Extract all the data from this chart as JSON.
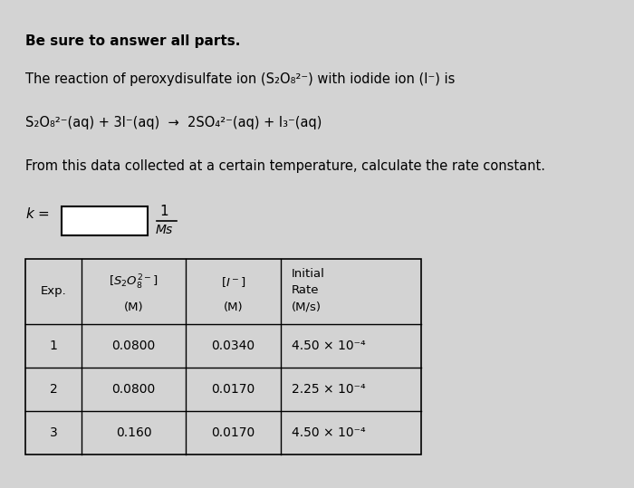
{
  "bg_color": "#d3d3d3",
  "text_color": "#000000",
  "title_bold": "Be sure to answer all parts.",
  "line1": "The reaction of peroxydisulfate ion (S₂O₈²⁻) with iodide ion (I⁻) is",
  "equation": "S₂O₈²⁻(aq) + 3I⁻(aq)  →  2SO₄²⁻(aq) + I₃⁻(aq)",
  "line3": "From this data collected at a certain temperature, calculate the rate constant.",
  "fs_title": 11,
  "fs_body": 10.5,
  "fs_table_header": 9.5,
  "fs_table_body": 10,
  "fs_k": 11,
  "table_rows": [
    [
      "1",
      "0.0800",
      "0.0340",
      "4.50 × 10⁻⁴"
    ],
    [
      "2",
      "0.0800",
      "0.0170",
      "2.25 × 10⁻⁴"
    ],
    [
      "3",
      "0.160",
      "0.0170",
      "4.50 × 10⁻⁴"
    ]
  ]
}
